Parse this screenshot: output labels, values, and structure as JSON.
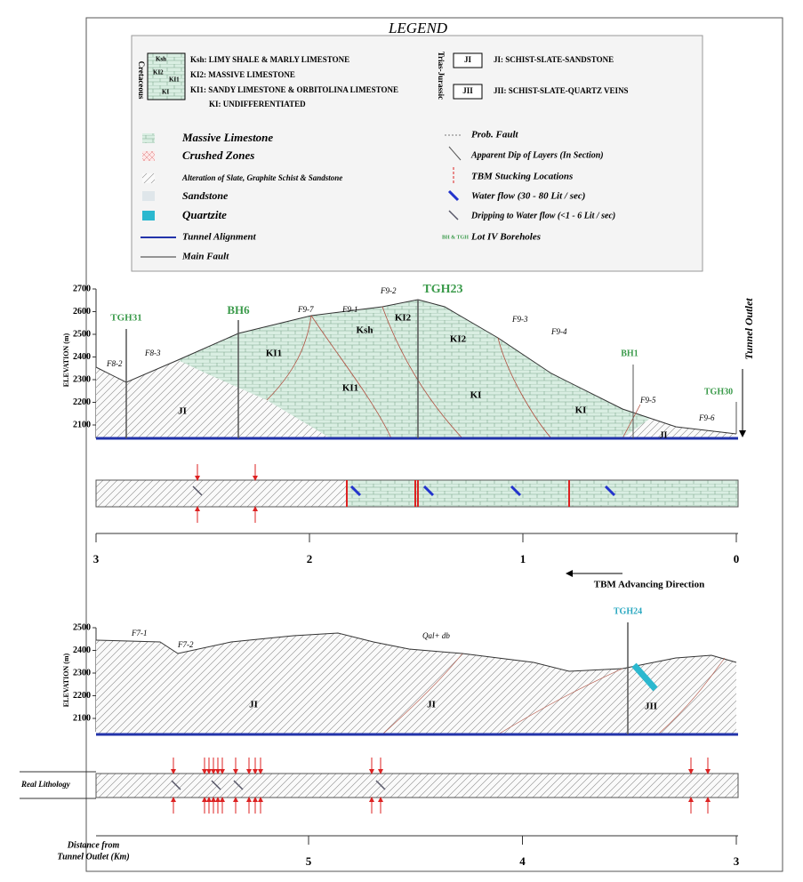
{
  "legend": {
    "title": "LEGEND",
    "cretaceous": {
      "label": "Cretaceous",
      "box_labels": [
        "Ksh",
        "KI2",
        "KI1",
        "KI"
      ],
      "items": [
        "Ksh: LIMY SHALE & MARLY LIMESTONE",
        "KI2: MASSIVE LIMESTONE",
        "KI1: SANDY LIMESTONE & ORBITOLINA LIMESTONE",
        "KI: UNDIFFERENTIATED"
      ]
    },
    "jurassic": {
      "label": "Trias-Jurassic",
      "items": [
        {
          "code": "JI",
          "text": "JI: SCHIST-SLATE-SANDSTONE"
        },
        {
          "code": "JII",
          "text": "JII: SCHIST-SLATE-QUARTZ VEINS"
        }
      ]
    },
    "symbols_left": [
      "Massive Limestone",
      "Crushed Zones",
      "Alteration of Slate, Graphite Schist & Sandstone",
      "Sandstone",
      "Quartzite",
      "Tunnel Alignment",
      "Main Fault"
    ],
    "symbols_right": [
      "Prob. Fault",
      "Apparent Dip of Layers (In Section)",
      "TBM Stucking Locations",
      "Water flow (30 - 80 Lit / sec)",
      "Dripping to Water flow (<1 - 6 Lit / sec)",
      "Lot IV Boreholes"
    ],
    "borehole_tag": "BH & TGH"
  },
  "section1": {
    "y_label": "ELEVATION (m)",
    "elevation_ticks": [
      2700,
      2600,
      2500,
      2400,
      2300,
      2200,
      2100
    ],
    "boreholes": [
      "TGH31",
      "BH6",
      "TGH23",
      "BH1",
      "TGH30"
    ],
    "faults": [
      "F8-2",
      "F8-3",
      "F9-7",
      "F9-1",
      "F9-2",
      "F9-3",
      "F9-4",
      "F9-5",
      "F9-6"
    ],
    "units": [
      "Ksh",
      "KI2",
      "KI1",
      "KI1",
      "KI2",
      "KI",
      "KI",
      "JI",
      "JI"
    ],
    "outlet": "Tunnel Outlet",
    "distance_ticks": [
      3,
      2,
      1,
      0
    ],
    "direction": "TBM Advancing Direction"
  },
  "section2": {
    "y_label": "ELEVATION (m)",
    "elevation_ticks": [
      2500,
      2400,
      2300,
      2200,
      2100
    ],
    "boreholes": [
      "TGH24"
    ],
    "faults": [
      "F7-1",
      "F7-2"
    ],
    "surface": "Qal+ db",
    "units": [
      "JI",
      "JI",
      "JII"
    ],
    "strip_label": "Real Lithology",
    "axis_label": [
      "Distance from",
      "Tunnel Outlet (Km)"
    ],
    "distance_ticks": [
      5,
      4,
      3
    ]
  }
}
